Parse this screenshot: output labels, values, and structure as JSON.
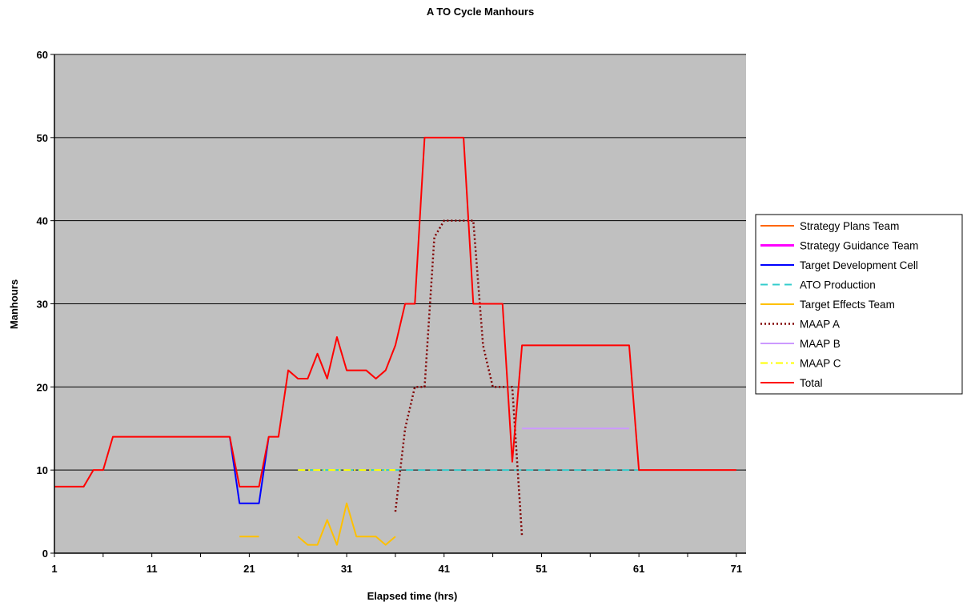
{
  "chart_data": {
    "type": "line",
    "title": "A TO Cycle Manhours",
    "xlabel": "Elapsed time (hrs)",
    "ylabel": "Manhours",
    "xlim": [
      1,
      72
    ],
    "ylim": [
      0,
      60
    ],
    "x_ticks": [
      1,
      11,
      21,
      31,
      41,
      51,
      61,
      71
    ],
    "y_ticks": [
      0,
      10,
      20,
      30,
      40,
      50,
      60
    ],
    "grid": "horizontal",
    "plot_background": "#C0C0C0",
    "legend_position": "right",
    "series": [
      {
        "name": "Strategy Plans Team",
        "color": "#FF6600",
        "dash": "solid",
        "width": 2,
        "points": []
      },
      {
        "name": "Strategy Guidance Team",
        "color": "#FF00FF",
        "dash": "solid",
        "width": 3,
        "points": []
      },
      {
        "name": "Target Development Cell",
        "color": "#0000FF",
        "dash": "solid",
        "width": 2,
        "points": [
          [
            19,
            14
          ],
          [
            20,
            6
          ],
          [
            21,
            6
          ],
          [
            22,
            6
          ],
          [
            23,
            14
          ]
        ]
      },
      {
        "name": "ATO Production",
        "color": "#33CCCC",
        "dash": "dashed",
        "width": 2,
        "points": [
          [
            26,
            10
          ],
          [
            61,
            10
          ]
        ]
      },
      {
        "name": "Target Effects Team",
        "color": "#FFC000",
        "dash": "solid",
        "width": 2,
        "segments": [
          [
            [
              20,
              2
            ],
            [
              22,
              2
            ]
          ],
          [
            [
              26,
              2
            ],
            [
              27,
              1
            ],
            [
              28,
              1
            ],
            [
              29,
              4
            ],
            [
              30,
              1
            ],
            [
              31,
              6
            ],
            [
              32,
              2
            ],
            [
              33,
              2
            ],
            [
              34,
              2
            ],
            [
              35,
              1
            ],
            [
              36,
              2
            ]
          ]
        ]
      },
      {
        "name": "MAAP A",
        "color": "#800000",
        "dash": "dotted",
        "width": 2.5,
        "points": [
          [
            36,
            5
          ],
          [
            37,
            15
          ],
          [
            38,
            20
          ],
          [
            39,
            20
          ],
          [
            40,
            38
          ],
          [
            41,
            40
          ],
          [
            42,
            40
          ],
          [
            43,
            40
          ],
          [
            44,
            40
          ],
          [
            45,
            25
          ],
          [
            46,
            20
          ],
          [
            47,
            20
          ],
          [
            48,
            20
          ],
          [
            49,
            2
          ]
        ]
      },
      {
        "name": "MAAP B",
        "color": "#CC99FF",
        "dash": "solid",
        "width": 2,
        "points": [
          [
            49,
            15
          ],
          [
            60,
            15
          ]
        ]
      },
      {
        "name": "MAAP C",
        "color": "#FFFF00",
        "dash": "dashdot",
        "width": 2,
        "points": [
          [
            26,
            10
          ],
          [
            36,
            10
          ]
        ]
      },
      {
        "name": "Total",
        "color": "#FF0000",
        "dash": "solid",
        "width": 2,
        "points": [
          [
            1,
            8
          ],
          [
            2,
            8
          ],
          [
            3,
            8
          ],
          [
            4,
            8
          ],
          [
            5,
            10
          ],
          [
            6,
            10
          ],
          [
            7,
            14
          ],
          [
            8,
            14
          ],
          [
            9,
            14
          ],
          [
            10,
            14
          ],
          [
            11,
            14
          ],
          [
            12,
            14
          ],
          [
            13,
            14
          ],
          [
            14,
            14
          ],
          [
            15,
            14
          ],
          [
            16,
            14
          ],
          [
            17,
            14
          ],
          [
            18,
            14
          ],
          [
            19,
            14
          ],
          [
            20,
            8
          ],
          [
            21,
            8
          ],
          [
            22,
            8
          ],
          [
            23,
            14
          ],
          [
            24,
            14
          ],
          [
            25,
            22
          ],
          [
            26,
            21
          ],
          [
            27,
            21
          ],
          [
            28,
            24
          ],
          [
            29,
            21
          ],
          [
            30,
            26
          ],
          [
            31,
            22
          ],
          [
            32,
            22
          ],
          [
            33,
            22
          ],
          [
            34,
            21
          ],
          [
            35,
            22
          ],
          [
            36,
            25
          ],
          [
            37,
            30
          ],
          [
            38,
            30
          ],
          [
            39,
            50
          ],
          [
            40,
            50
          ],
          [
            41,
            50
          ],
          [
            42,
            50
          ],
          [
            43,
            50
          ],
          [
            44,
            30
          ],
          [
            45,
            30
          ],
          [
            46,
            30
          ],
          [
            47,
            30
          ],
          [
            48,
            11
          ],
          [
            49,
            25
          ],
          [
            50,
            25
          ],
          [
            51,
            25
          ],
          [
            52,
            25
          ],
          [
            53,
            25
          ],
          [
            54,
            25
          ],
          [
            55,
            25
          ],
          [
            56,
            25
          ],
          [
            57,
            25
          ],
          [
            58,
            25
          ],
          [
            59,
            25
          ],
          [
            60,
            25
          ],
          [
            61,
            10
          ],
          [
            62,
            10
          ],
          [
            63,
            10
          ],
          [
            64,
            10
          ],
          [
            65,
            10
          ],
          [
            66,
            10
          ],
          [
            67,
            10
          ],
          [
            68,
            10
          ],
          [
            69,
            10
          ],
          [
            70,
            10
          ],
          [
            71,
            10
          ]
        ]
      }
    ]
  }
}
